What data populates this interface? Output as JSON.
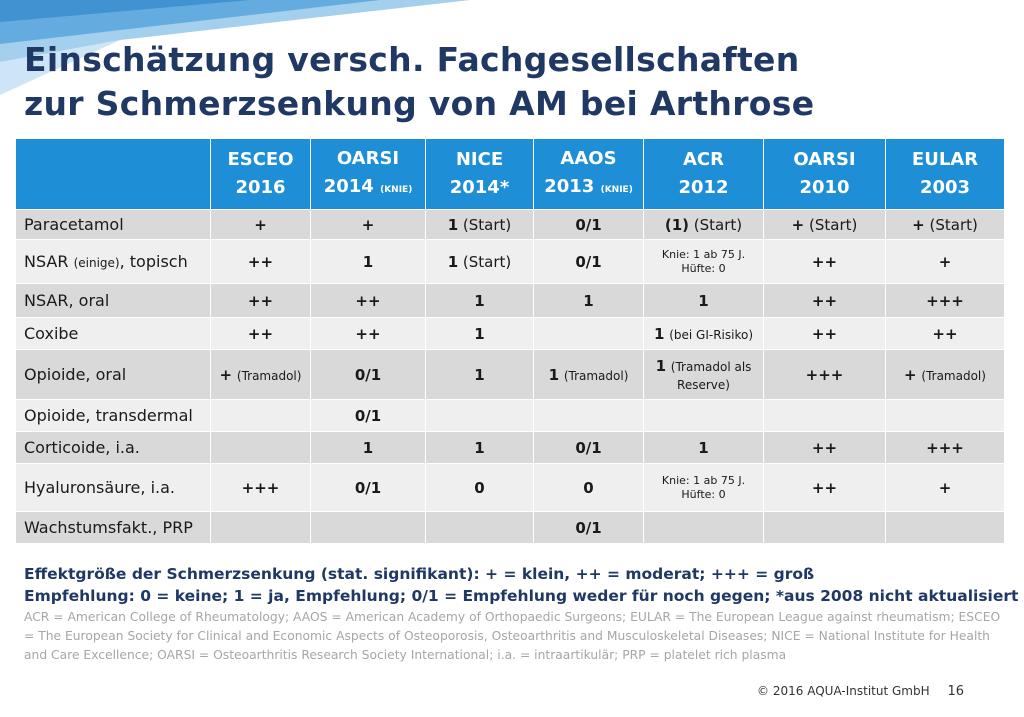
{
  "title": {
    "line1": "Einschätzung versch. Fachgesellschaften",
    "line2": "zur Schmerzsenkung von AM bei Arthrose"
  },
  "table": {
    "columns": [
      {
        "name": "ESCEO",
        "year": "2016",
        "note": ""
      },
      {
        "name": "OARSI",
        "year": "2014",
        "note": "(KNIE)"
      },
      {
        "name": "NICE",
        "year": "2014*",
        "note": ""
      },
      {
        "name": "AAOS",
        "year": "2013",
        "note": "(KNIE)"
      },
      {
        "name": "ACR",
        "year": "2012",
        "note": ""
      },
      {
        "name": "OARSI",
        "year": "2010",
        "note": ""
      },
      {
        "name": "EULAR",
        "year": "2003",
        "note": ""
      }
    ],
    "rows": [
      {
        "label": "Paracetamol",
        "label_small": "",
        "label_suffix": "",
        "cells": [
          {
            "main": "+",
            "note": ""
          },
          {
            "main": "+",
            "note": ""
          },
          {
            "main": "1",
            "note": "(Start)"
          },
          {
            "main": "0/1",
            "note": ""
          },
          {
            "main": "(1)",
            "note": "(Start)"
          },
          {
            "main": "+",
            "note": "(Start)"
          },
          {
            "main": "+",
            "note": "(Start)"
          }
        ]
      },
      {
        "label": "NSAR",
        "label_small": "(einige)",
        "label_suffix": ", topisch",
        "cells": [
          {
            "main": "++",
            "note": ""
          },
          {
            "main": "1",
            "note": ""
          },
          {
            "main": "1",
            "note": "(Start)"
          },
          {
            "main": "0/1",
            "note": ""
          },
          {
            "main": "",
            "note": "",
            "line1": "Knie: 1 ab 75 J.",
            "line2": "Hüfte: 0"
          },
          {
            "main": "++",
            "note": ""
          },
          {
            "main": "+",
            "note": ""
          }
        ]
      },
      {
        "label": "NSAR, oral",
        "label_small": "",
        "label_suffix": "",
        "cells": [
          {
            "main": "++",
            "note": ""
          },
          {
            "main": "++",
            "note": ""
          },
          {
            "main": "1",
            "note": ""
          },
          {
            "main": "1",
            "note": ""
          },
          {
            "main": "1",
            "note": ""
          },
          {
            "main": "++",
            "note": ""
          },
          {
            "main": "+++",
            "note": ""
          }
        ]
      },
      {
        "label": "Coxibe",
        "label_small": "",
        "label_suffix": "",
        "cells": [
          {
            "main": "++",
            "note": ""
          },
          {
            "main": "++",
            "note": ""
          },
          {
            "main": "1",
            "note": ""
          },
          {
            "main": "",
            "note": ""
          },
          {
            "main": "1",
            "note": "(bei GI-Risiko)"
          },
          {
            "main": "++",
            "note": ""
          },
          {
            "main": "++",
            "note": ""
          }
        ]
      },
      {
        "label": "Opioide, oral",
        "label_small": "",
        "label_suffix": "",
        "cells": [
          {
            "main": "+",
            "note": "(Tramadol)"
          },
          {
            "main": "0/1",
            "note": ""
          },
          {
            "main": "1",
            "note": ""
          },
          {
            "main": "1",
            "note": "(Tramadol)"
          },
          {
            "main": "1",
            "note": "(Tramadol als",
            "line2": "Reserve)"
          },
          {
            "main": "+++",
            "note": ""
          },
          {
            "main": "+",
            "note": "(Tramadol)"
          }
        ]
      },
      {
        "label": "Opioide, transdermal",
        "label_small": "",
        "label_suffix": "",
        "cells": [
          {
            "main": "",
            "note": ""
          },
          {
            "main": "0/1",
            "note": ""
          },
          {
            "main": "",
            "note": ""
          },
          {
            "main": "",
            "note": ""
          },
          {
            "main": "",
            "note": ""
          },
          {
            "main": "",
            "note": ""
          },
          {
            "main": "",
            "note": ""
          }
        ]
      },
      {
        "label": "Corticoide, i.a.",
        "label_small": "",
        "label_suffix": "",
        "cells": [
          {
            "main": "",
            "note": ""
          },
          {
            "main": "1",
            "note": ""
          },
          {
            "main": "1",
            "note": ""
          },
          {
            "main": "0/1",
            "note": ""
          },
          {
            "main": "1",
            "note": ""
          },
          {
            "main": "++",
            "note": ""
          },
          {
            "main": "+++",
            "note": ""
          }
        ]
      },
      {
        "label": "Hyaluronsäure, i.a.",
        "label_small": "",
        "label_suffix": "",
        "cells": [
          {
            "main": "+++",
            "note": ""
          },
          {
            "main": "0/1",
            "note": ""
          },
          {
            "main": "0",
            "note": ""
          },
          {
            "main": "0",
            "note": ""
          },
          {
            "main": "",
            "note": "",
            "line1": "Knie: 1 ab 75 J.",
            "line2": "Hüfte: 0"
          },
          {
            "main": "++",
            "note": ""
          },
          {
            "main": "+",
            "note": ""
          }
        ]
      },
      {
        "label": "Wachstumsfakt., PRP",
        "label_small": "",
        "label_suffix": "",
        "cells": [
          {
            "main": "",
            "note": ""
          },
          {
            "main": "",
            "note": ""
          },
          {
            "main": "",
            "note": ""
          },
          {
            "main": "0/1",
            "note": ""
          },
          {
            "main": "",
            "note": ""
          },
          {
            "main": "",
            "note": ""
          },
          {
            "main": "",
            "note": ""
          }
        ]
      }
    ]
  },
  "legend": {
    "line1": "Effektgröße der Schmerzsenkung (stat. signifikant): + = klein, ++ = moderat; +++ = groß",
    "line2": "Empfehlung: 0 = keine; 1 = ja, Empfehlung; 0/1 = Empfehlung weder für noch gegen; *aus 2008 nicht aktualisiert",
    "abbreviations": "ACR = American College of Rheumatology; AAOS = American Academy of Orthopaedic Surgeons; EULAR = The European League against rheumatism; ESCEO = The European Society for Clinical and Economic Aspects of Osteoporosis, Osteoarthritis and Musculoskeletal Diseases; NICE = National Institute for Health and Care Excellence; OARSI = Osteoarthritis Research Society International; i.a. = intraartikulär; PRP = platelet rich plasma"
  },
  "footer": {
    "copyright": "© 2016 AQUA-Institut GmbH",
    "page": "16"
  },
  "colors": {
    "header_bg": "#1e8fd6",
    "title": "#1f3864",
    "row_dark": "#d9d9d9",
    "row_light": "#efefef"
  }
}
